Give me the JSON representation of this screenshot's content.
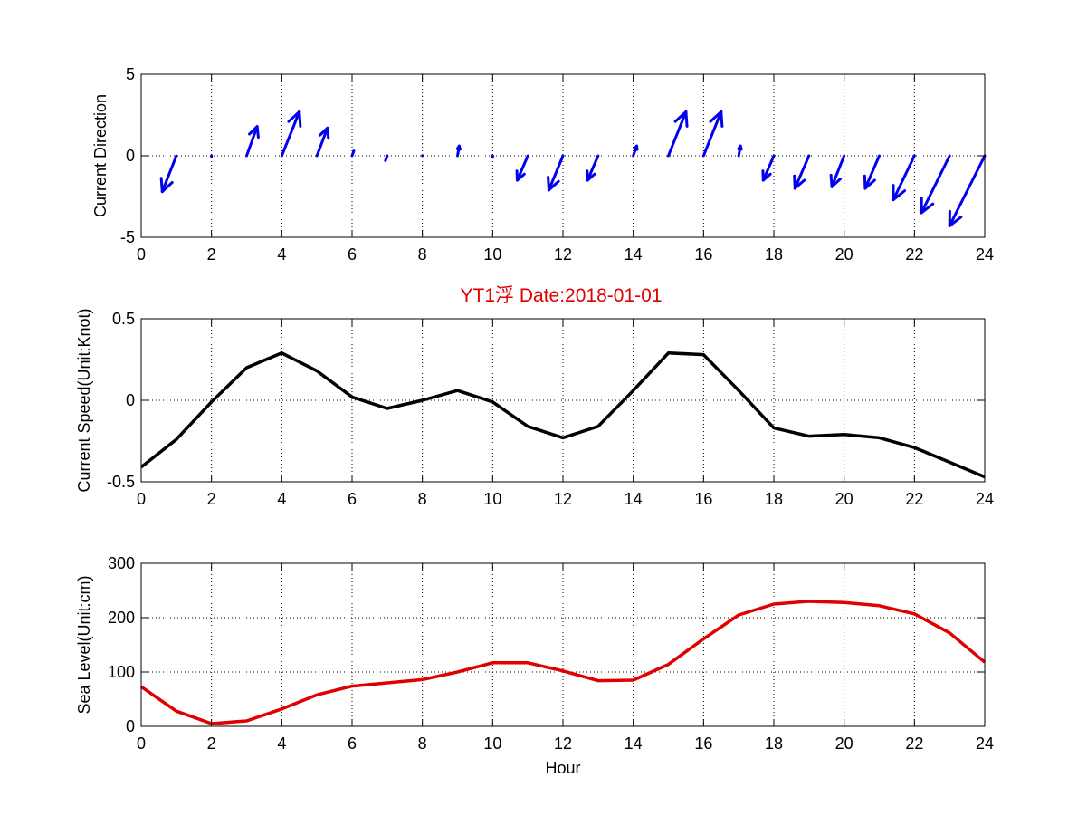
{
  "title": "YT1浮    Date:2018-01-01",
  "colors": {
    "direction": "#0000ee",
    "speed": "#000000",
    "sea_level": "#e00000",
    "title": "#e00000"
  },
  "chart_data": [
    {
      "type": "quiver",
      "ylabel": "Current Direction",
      "xlabel": "",
      "xlim": [
        0,
        24
      ],
      "ylim": [
        -5,
        5
      ],
      "xticks": [
        "0",
        "2",
        "4",
        "6",
        "8",
        "10",
        "12",
        "14",
        "16",
        "18",
        "20",
        "22",
        "24"
      ],
      "yticks": [
        "-5",
        "0",
        "5"
      ],
      "grid": true,
      "x": [
        1,
        2,
        3,
        4,
        5,
        6,
        7,
        8,
        9,
        10,
        11,
        12,
        13,
        14,
        15,
        16,
        17,
        18,
        19,
        20,
        21,
        22,
        23,
        24
      ],
      "u": [
        -0.4,
        0,
        0.3,
        0.5,
        0.3,
        0.05,
        -0.05,
        0,
        0.05,
        0,
        -0.3,
        -0.4,
        -0.3,
        0.1,
        0.5,
        0.5,
        0.05,
        -0.3,
        -0.4,
        -0.35,
        -0.4,
        -0.6,
        -0.8,
        -1.0
      ],
      "v": [
        -2.2,
        -0.05,
        1.8,
        2.7,
        1.7,
        0.3,
        -0.3,
        0,
        0.6,
        -0.1,
        -1.5,
        -2.1,
        -1.5,
        0.6,
        2.7,
        2.7,
        0.6,
        -1.5,
        -2.0,
        -1.9,
        -2.0,
        -2.7,
        -3.5,
        -4.3
      ]
    },
    {
      "type": "line",
      "ylabel": "Current Speed(Unit:Knot)",
      "xlabel": "",
      "xlim": [
        0,
        24
      ],
      "ylim": [
        -0.5,
        0.5
      ],
      "xticks": [
        "0",
        "2",
        "4",
        "6",
        "8",
        "10",
        "12",
        "14",
        "16",
        "18",
        "20",
        "22",
        "24"
      ],
      "yticks": [
        "-0.5",
        "0",
        "0.5"
      ],
      "grid": true,
      "series": [
        {
          "x": [
            0,
            1,
            2,
            3,
            4,
            5,
            6,
            7,
            8,
            9,
            10,
            11,
            12,
            13,
            14,
            15,
            16,
            17,
            18,
            19,
            20,
            21,
            22,
            23,
            24
          ],
          "values": [
            -0.41,
            -0.24,
            -0.01,
            0.2,
            0.29,
            0.18,
            0.02,
            -0.05,
            0.0,
            0.06,
            -0.01,
            -0.16,
            -0.23,
            -0.16,
            0.06,
            0.29,
            0.28,
            0.06,
            -0.17,
            -0.22,
            -0.21,
            -0.23,
            -0.29,
            -0.38,
            -0.47
          ]
        }
      ]
    },
    {
      "type": "line",
      "ylabel": "Sea Level(Unit:cm)",
      "xlabel": "Hour",
      "xlim": [
        0,
        24
      ],
      "ylim": [
        0,
        300
      ],
      "xticks": [
        "0",
        "2",
        "4",
        "6",
        "8",
        "10",
        "12",
        "14",
        "16",
        "18",
        "20",
        "22",
        "24"
      ],
      "yticks": [
        "0",
        "100",
        "200",
        "300"
      ],
      "grid": true,
      "series": [
        {
          "x": [
            0,
            1,
            2,
            3,
            4,
            5,
            6,
            7,
            8,
            9,
            10,
            11,
            12,
            13,
            14,
            15,
            16,
            17,
            18,
            19,
            20,
            21,
            22,
            23,
            24
          ],
          "values": [
            73,
            28,
            5,
            10,
            32,
            58,
            74,
            80,
            86,
            100,
            117,
            117,
            102,
            84,
            85,
            114,
            161,
            205,
            225,
            230,
            228,
            222,
            207,
            172,
            118
          ]
        }
      ]
    }
  ]
}
